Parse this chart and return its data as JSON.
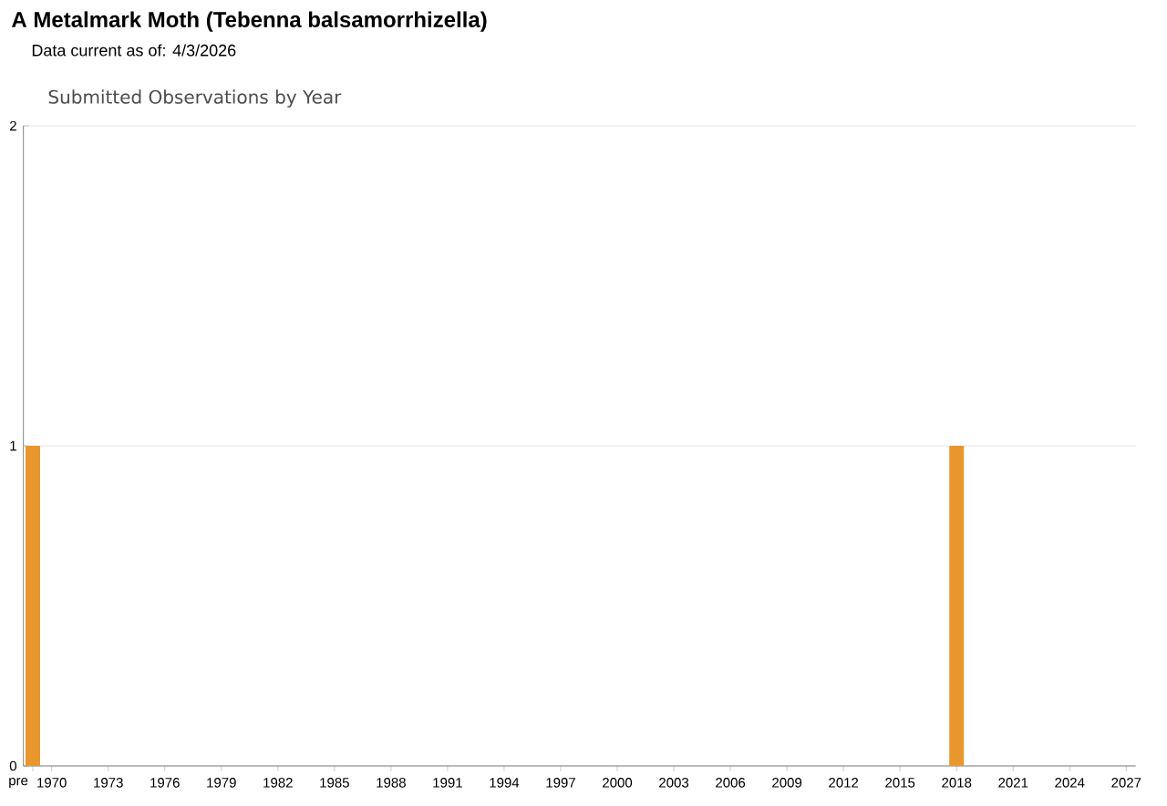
{
  "chart_data": {
    "type": "bar",
    "title": "A Metalmark Moth   (Tebenna balsamorrhizella)",
    "subtitle": "Data current as of: 4/3/2026",
    "annotations": [
      "Submitted Observations by Year"
    ],
    "categories": [
      "pre",
      "1970",
      null,
      null,
      "1973",
      null,
      null,
      "1976",
      null,
      null,
      "1979",
      null,
      null,
      "1982",
      null,
      null,
      "1985",
      null,
      null,
      "1988",
      null,
      null,
      "1991",
      null,
      null,
      "1994",
      null,
      null,
      "1997",
      null,
      null,
      "2000",
      null,
      null,
      "2003",
      null,
      null,
      "2006",
      null,
      null,
      "2009",
      null,
      null,
      "2012",
      null,
      null,
      "2015",
      null,
      null,
      "2018",
      null,
      null,
      "2021",
      null,
      null,
      "2024",
      null,
      null,
      "2027"
    ],
    "values": [
      1,
      0,
      0,
      0,
      0,
      0,
      0,
      0,
      0,
      0,
      0,
      0,
      0,
      0,
      0,
      0,
      0,
      0,
      0,
      0,
      0,
      0,
      0,
      0,
      0,
      0,
      0,
      0,
      0,
      0,
      0,
      0,
      0,
      0,
      0,
      0,
      0,
      0,
      0,
      0,
      0,
      0,
      0,
      0,
      0,
      0,
      0,
      0,
      0,
      1,
      0,
      0,
      0,
      0,
      0,
      0,
      0,
      0,
      0
    ],
    "color": "#e8962e",
    "ylim": [
      0,
      2
    ],
    "yticks": [
      0,
      1,
      2
    ],
    "grid": "y"
  }
}
